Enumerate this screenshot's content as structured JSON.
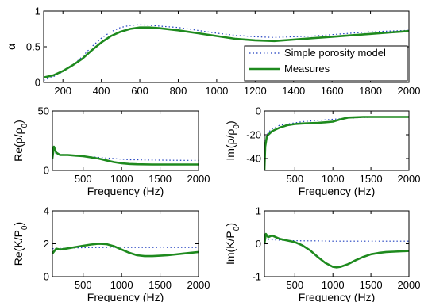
{
  "colors": {
    "model": "#1f3fbf",
    "measures": "#1e8a1e"
  },
  "chart_data": [
    {
      "type": "line",
      "ylabel": "α",
      "xlabel": "",
      "xlim": [
        100,
        2000
      ],
      "ylim": [
        0,
        1
      ],
      "xticks": [
        200,
        400,
        600,
        800,
        1000,
        1200,
        1400,
        1600,
        1800,
        2000
      ],
      "yticks": [
        0,
        0.5,
        1
      ],
      "ytick_labels": [
        "0",
        "0.5",
        "1"
      ],
      "legend": "bottom-right",
      "series": [
        {
          "name": "Simple porosity model",
          "style": "dotted",
          "x": [
            100,
            150,
            200,
            250,
            300,
            350,
            400,
            450,
            500,
            550,
            600,
            650,
            700,
            800,
            900,
            1000,
            1100,
            1200,
            1300,
            1400,
            1500,
            1600,
            1700,
            1800,
            1900,
            2000
          ],
          "y": [
            0.03,
            0.08,
            0.15,
            0.24,
            0.36,
            0.5,
            0.62,
            0.71,
            0.77,
            0.8,
            0.81,
            0.8,
            0.79,
            0.77,
            0.73,
            0.69,
            0.66,
            0.64,
            0.63,
            0.64,
            0.65,
            0.67,
            0.69,
            0.71,
            0.72,
            0.73
          ]
        },
        {
          "name": "Measures",
          "style": "solid",
          "x": [
            100,
            150,
            200,
            250,
            300,
            350,
            400,
            450,
            500,
            550,
            600,
            650,
            700,
            800,
            900,
            1000,
            1100,
            1200,
            1300,
            1400,
            1500,
            1600,
            1700,
            1800,
            1900,
            2000
          ],
          "y": [
            0.07,
            0.1,
            0.16,
            0.24,
            0.33,
            0.45,
            0.56,
            0.65,
            0.71,
            0.75,
            0.77,
            0.77,
            0.76,
            0.73,
            0.69,
            0.65,
            0.61,
            0.59,
            0.58,
            0.6,
            0.62,
            0.64,
            0.66,
            0.68,
            0.7,
            0.72
          ]
        }
      ]
    },
    {
      "type": "line",
      "ylabel": "Re(ρ/ρ0)",
      "xlabel": "Frequency (Hz)",
      "xlim": [
        100,
        2000
      ],
      "ylim": [
        0,
        50
      ],
      "xticks": [
        500,
        1000,
        1500,
        2000
      ],
      "yticks": [
        0,
        50
      ],
      "ytick_labels": [
        "0",
        "50"
      ],
      "series": [
        {
          "style": "dotted",
          "x": [
            100,
            150,
            200,
            300,
            400,
            500,
            600,
            700,
            800,
            900,
            1000,
            1100,
            1200,
            1300,
            1400,
            1600,
            1800,
            2000
          ],
          "y": [
            16,
            14,
            13.5,
            13,
            12.5,
            12,
            11.5,
            11,
            10.5,
            10,
            9.5,
            9,
            9,
            8.8,
            8.7,
            8.6,
            8.5,
            8.5
          ]
        },
        {
          "style": "solid",
          "x": [
            100,
            120,
            150,
            200,
            300,
            400,
            500,
            600,
            700,
            800,
            900,
            1000,
            1100,
            1200,
            1400,
            1600,
            1800,
            2000
          ],
          "y": [
            10,
            20,
            15,
            13,
            13,
            12.5,
            12,
            11,
            10,
            8.5,
            7,
            6,
            5.5,
            5.2,
            5,
            5,
            5,
            5
          ]
        }
      ]
    },
    {
      "type": "line",
      "ylabel": "Im(ρ/ρ0)",
      "xlabel": "Frequency (Hz)",
      "xlim": [
        100,
        2000
      ],
      "ylim": [
        -50,
        0
      ],
      "xticks": [
        500,
        1000,
        1500,
        2000
      ],
      "yticks": [
        -40,
        -20,
        0
      ],
      "ytick_labels": [
        "-40",
        "-20",
        "0"
      ],
      "series": [
        {
          "style": "dotted",
          "x": [
            100,
            150,
            200,
            300,
            400,
            500,
            600,
            800,
            1000,
            1200,
            1400,
            1600,
            1800,
            2000
          ],
          "y": [
            -25,
            -18,
            -15,
            -12,
            -11,
            -10,
            -9,
            -8,
            -7,
            -6,
            -5.5,
            -5,
            -5,
            -5
          ]
        },
        {
          "style": "solid",
          "x": [
            100,
            110,
            130,
            150,
            200,
            300,
            400,
            500,
            600,
            800,
            900,
            1000,
            1100,
            1200,
            1400,
            1600,
            1800,
            2000
          ],
          "y": [
            -50,
            -30,
            -22,
            -20,
            -17,
            -14,
            -12,
            -11,
            -10.5,
            -10,
            -9.5,
            -9,
            -7,
            -5.5,
            -5,
            -5,
            -5,
            -5
          ]
        }
      ]
    },
    {
      "type": "line",
      "ylabel": "Re(K/P0)",
      "xlabel": "Frequency (Hz)",
      "xlim": [
        100,
        2000
      ],
      "ylim": [
        0,
        4
      ],
      "xticks": [
        500,
        1000,
        1500,
        2000
      ],
      "yticks": [
        0,
        2,
        4
      ],
      "ytick_labels": [
        "0",
        "2",
        "4"
      ],
      "series": [
        {
          "style": "dotted",
          "x": [
            100,
            200,
            300,
            400,
            500,
            600,
            700,
            800,
            900,
            1000,
            1200,
            1400,
            1600,
            1800,
            2000
          ],
          "y": [
            1.7,
            1.72,
            1.74,
            1.75,
            1.76,
            1.77,
            1.77,
            1.78,
            1.78,
            1.78,
            1.78,
            1.78,
            1.78,
            1.78,
            1.78
          ]
        },
        {
          "style": "solid",
          "x": [
            100,
            150,
            200,
            300,
            400,
            500,
            600,
            700,
            800,
            900,
            1000,
            1100,
            1200,
            1300,
            1400,
            1500,
            1600,
            1700,
            1800,
            1900,
            2000
          ],
          "y": [
            1.4,
            1.7,
            1.65,
            1.72,
            1.8,
            1.88,
            1.95,
            2.0,
            1.98,
            1.85,
            1.65,
            1.45,
            1.3,
            1.25,
            1.25,
            1.27,
            1.3,
            1.35,
            1.4,
            1.45,
            1.5
          ]
        }
      ]
    },
    {
      "type": "line",
      "ylabel": "Im(K/P0)",
      "xlabel": "Frequency (Hz)",
      "xlim": [
        100,
        2000
      ],
      "ylim": [
        -1,
        1
      ],
      "xticks": [
        500,
        1000,
        1500,
        2000
      ],
      "yticks": [
        -1,
        0,
        1
      ],
      "ytick_labels": [
        "-1",
        "0",
        "1"
      ],
      "series": [
        {
          "style": "dotted",
          "x": [
            100,
            200,
            400,
            600,
            800,
            1000,
            1200,
            1400,
            1600,
            1800,
            2000
          ],
          "y": [
            0.15,
            0.12,
            0.1,
            0.09,
            0.09,
            0.08,
            0.08,
            0.08,
            0.08,
            0.08,
            0.08
          ]
        },
        {
          "style": "solid",
          "x": [
            100,
            120,
            150,
            200,
            300,
            400,
            500,
            600,
            700,
            800,
            900,
            1000,
            1050,
            1100,
            1200,
            1300,
            1400,
            1500,
            1600,
            1700,
            1800,
            2000
          ],
          "y": [
            0.0,
            0.3,
            0.2,
            0.25,
            0.15,
            0.1,
            0.05,
            -0.05,
            -0.2,
            -0.4,
            -0.58,
            -0.7,
            -0.72,
            -0.7,
            -0.62,
            -0.5,
            -0.4,
            -0.32,
            -0.28,
            -0.25,
            -0.24,
            -0.22
          ]
        }
      ]
    }
  ]
}
